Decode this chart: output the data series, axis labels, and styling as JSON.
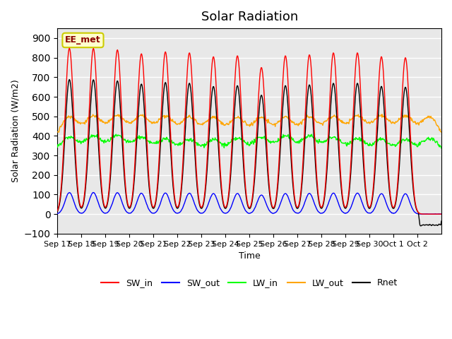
{
  "title": "Solar Radiation",
  "xlabel": "Time",
  "ylabel": "Solar Radiation (W/m2)",
  "annotation": "EE_met",
  "ylim": [
    -100,
    950
  ],
  "yticks": [
    -100,
    0,
    100,
    200,
    300,
    400,
    500,
    600,
    700,
    800,
    900
  ],
  "xtick_labels": [
    "Sep 17",
    "Sep 18",
    "Sep 19",
    "Sep 20",
    "Sep 21",
    "Sep 22",
    "Sep 23",
    "Sep 24",
    "Sep 25",
    "Sep 26",
    "Sep 27",
    "Sep 28",
    "Sep 29",
    "Sep 30",
    "Oct 1",
    "Oct 2"
  ],
  "series_colors": {
    "SW_in": "#ff0000",
    "SW_out": "#0000ff",
    "LW_in": "#00ff00",
    "LW_out": "#ffa500",
    "Rnet": "#000000"
  },
  "background_color": "#e8e8e8",
  "figsize": [
    6.4,
    4.8
  ],
  "dpi": 100,
  "n_days": 16,
  "pts_per_day": 48
}
